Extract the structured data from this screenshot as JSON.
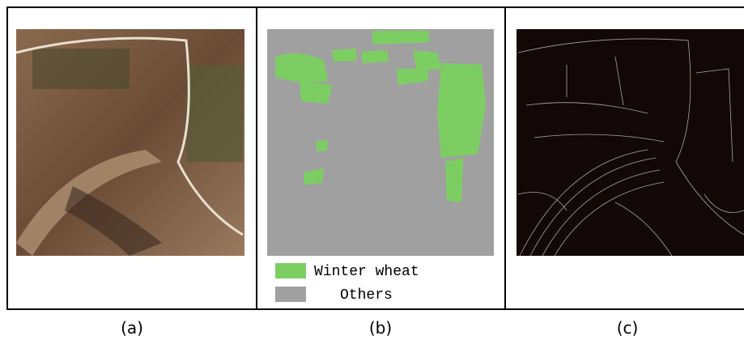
{
  "panels": [
    {
      "label": "(a)"
    },
    {
      "label": "(b)"
    },
    {
      "label": "(c)"
    }
  ],
  "legend": [
    {
      "name": "Winter wheat",
      "color": "#7dce62"
    },
    {
      "name": "Others",
      "color": "#a0a0a0"
    }
  ]
}
